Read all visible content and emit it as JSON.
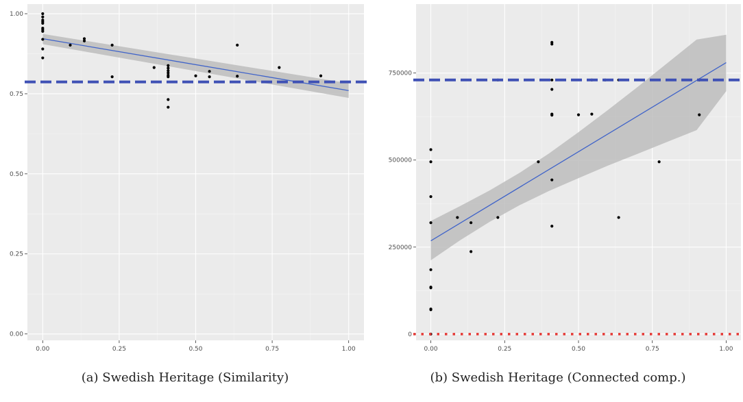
{
  "captions": {
    "a": "(a) Swedish Heritage (Similarity)",
    "b": "(b) Swedish Heritage (Connected comp.)"
  },
  "chart_data": [
    {
      "type": "scatter",
      "title": "",
      "xlabel": "",
      "ylabel": "",
      "xlim": [
        -0.05,
        1.05
      ],
      "ylim": [
        -0.02,
        1.03
      ],
      "x_ticks": [
        0.0,
        0.25,
        0.5,
        0.75,
        1.0
      ],
      "x_tick_labels": [
        "0.00",
        "0.25",
        "0.50",
        "0.75",
        "1.00"
      ],
      "y_ticks": [
        0.0,
        0.25,
        0.5,
        0.75,
        1.0
      ],
      "y_tick_labels": [
        "0.00",
        "0.25",
        "0.50",
        "0.75",
        "1.00"
      ],
      "grid": true,
      "points": [
        [
          0.0,
          1.0
        ],
        [
          0.0,
          0.99
        ],
        [
          0.0,
          0.98
        ],
        [
          0.0,
          0.975
        ],
        [
          0.0,
          0.97
        ],
        [
          0.0,
          0.955
        ],
        [
          0.0,
          0.95
        ],
        [
          0.0,
          0.945
        ],
        [
          0.0,
          0.92
        ],
        [
          0.0,
          0.89
        ],
        [
          0.0,
          0.862
        ],
        [
          0.09,
          0.902
        ],
        [
          0.136,
          0.922
        ],
        [
          0.136,
          0.915
        ],
        [
          0.227,
          0.902
        ],
        [
          0.227,
          0.803
        ],
        [
          0.364,
          0.832
        ],
        [
          0.41,
          0.838
        ],
        [
          0.41,
          0.83
        ],
        [
          0.41,
          0.822
        ],
        [
          0.41,
          0.815
        ],
        [
          0.41,
          0.808
        ],
        [
          0.41,
          0.803
        ],
        [
          0.41,
          0.732
        ],
        [
          0.41,
          0.708
        ],
        [
          0.5,
          0.806
        ],
        [
          0.545,
          0.82
        ],
        [
          0.545,
          0.803
        ],
        [
          0.636,
          0.902
        ],
        [
          0.636,
          0.805
        ],
        [
          0.773,
          0.832
        ],
        [
          0.909,
          0.806
        ]
      ],
      "trend": {
        "x": [
          0.0,
          1.0
        ],
        "y": [
          0.922,
          0.76
        ]
      },
      "confidence_band": {
        "x": [
          0.0,
          1.0
        ],
        "upper": [
          0.937,
          0.783
        ],
        "lower": [
          0.905,
          0.737
        ]
      },
      "reference_lines": [
        {
          "y": 0.787,
          "style": "dashed",
          "color": "#3f51b5"
        }
      ],
      "colors": {
        "points": "#000000",
        "trend": "#3f63c9",
        "band": "#bdbdbd",
        "panel": "#ebebeb",
        "grid_major": "#ffffff"
      }
    },
    {
      "type": "scatter",
      "title": "",
      "xlabel": "",
      "ylabel": "",
      "xlim": [
        -0.05,
        1.05
      ],
      "ylim": [
        -18000,
        948000
      ],
      "x_ticks": [
        0.0,
        0.25,
        0.5,
        0.75,
        1.0
      ],
      "x_tick_labels": [
        "0.00",
        "0.25",
        "0.50",
        "0.75",
        "1.00"
      ],
      "y_ticks": [
        0,
        250000,
        500000,
        750000
      ],
      "y_tick_labels": [
        "0",
        "250000",
        "500000",
        "750000"
      ],
      "grid": true,
      "points": [
        [
          0.0,
          530000
        ],
        [
          0.0,
          495000
        ],
        [
          0.0,
          395000
        ],
        [
          0.0,
          320000
        ],
        [
          0.0,
          185000
        ],
        [
          0.0,
          135000
        ],
        [
          0.0,
          133000
        ],
        [
          0.0,
          72000
        ],
        [
          0.0,
          70000
        ],
        [
          0.0,
          0
        ],
        [
          0.09,
          335000
        ],
        [
          0.136,
          320000
        ],
        [
          0.136,
          237000
        ],
        [
          0.227,
          335000
        ],
        [
          0.227,
          730000
        ],
        [
          0.364,
          495000
        ],
        [
          0.41,
          838000
        ],
        [
          0.41,
          833000
        ],
        [
          0.41,
          730000
        ],
        [
          0.41,
          703000
        ],
        [
          0.41,
          632000
        ],
        [
          0.41,
          629000
        ],
        [
          0.41,
          443000
        ],
        [
          0.41,
          310000
        ],
        [
          0.5,
          630000
        ],
        [
          0.545,
          632000
        ],
        [
          0.545,
          730000
        ],
        [
          0.59,
          730000
        ],
        [
          0.636,
          730000
        ],
        [
          0.636,
          335000
        ],
        [
          0.773,
          495000
        ],
        [
          0.909,
          730000
        ],
        [
          0.909,
          630000
        ]
      ],
      "trend": {
        "x": [
          0.0,
          1.0
        ],
        "y": [
          268000,
          780000
        ]
      },
      "confidence_band": {
        "x": [
          0.0,
          0.1,
          0.2,
          0.3,
          0.4,
          0.5,
          0.6,
          0.7,
          0.8,
          0.9,
          1.0
        ],
        "upper": [
          325000,
          368000,
          413000,
          463000,
          519000,
          580000,
          644000,
          710000,
          778000,
          846000,
          860000
        ],
        "lower": [
          212000,
          270000,
          323000,
          370000,
          411000,
          448000,
          484000,
          518000,
          552000,
          586000,
          698000
        ]
      },
      "reference_lines": [
        {
          "y": 730000,
          "style": "dashed",
          "color": "#3f51b5"
        },
        {
          "y": 0,
          "style": "dotted",
          "color": "#e53935"
        }
      ],
      "colors": {
        "points": "#000000",
        "trend": "#3f63c9",
        "band": "#bdbdbd",
        "panel": "#ebebeb",
        "grid_major": "#ffffff"
      }
    }
  ]
}
